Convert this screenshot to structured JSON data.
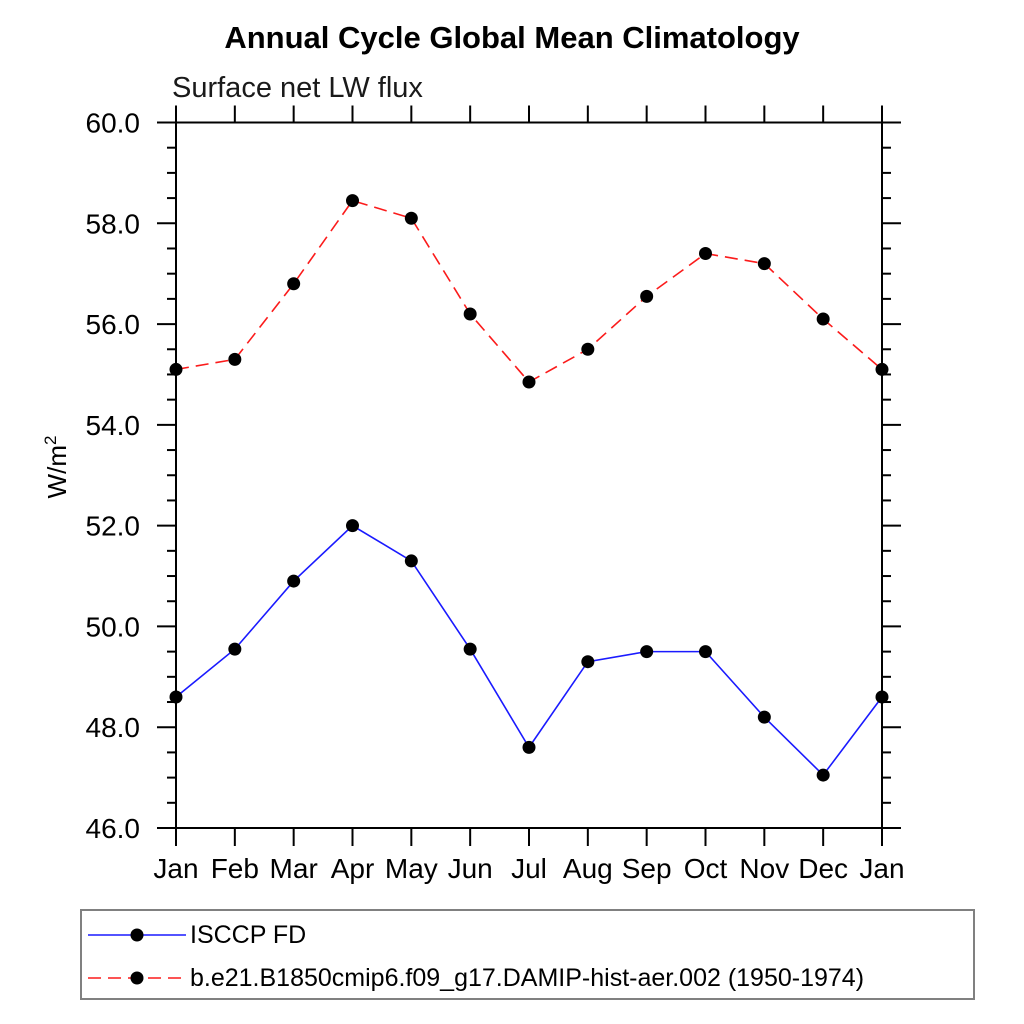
{
  "page": {
    "background": "#ffffff"
  },
  "chart_data": {
    "type": "line",
    "title": "Annual Cycle Global Mean Climatology",
    "subtitle": "Surface net LW flux",
    "ylabel_base": "W/m",
    "ylabel_exponent": "2",
    "xlabel": "",
    "categories": [
      "Jan",
      "Feb",
      "Mar",
      "Apr",
      "May",
      "Jun",
      "Jul",
      "Aug",
      "Sep",
      "Oct",
      "Nov",
      "Dec",
      "Jan"
    ],
    "ylim": [
      46.0,
      60.0
    ],
    "ytick_major_step": 2.0,
    "ytick_minor_step": 0.5,
    "ytick_label_decimals": 1,
    "grid": false,
    "frame": "box-with-outward-ticks",
    "axis_color": "#000000",
    "marker": {
      "shape": "circle",
      "color": "#000000"
    },
    "legend_position": "bottom-left-outside",
    "legend_border_color": "#808080",
    "series": [
      {
        "name": "ISCCP FD",
        "color": "#1a1aff",
        "line_style": "solid",
        "values": [
          48.6,
          49.55,
          50.9,
          52.0,
          51.3,
          49.55,
          47.6,
          49.3,
          49.5,
          49.5,
          48.2,
          47.05,
          48.6
        ]
      },
      {
        "name": "b.e21.B1850cmip6.f09_g17.DAMIP-hist-aer.002 (1950-1974)",
        "color": "#fb1b1b",
        "line_style": "dashed",
        "values": [
          55.1,
          55.3,
          56.8,
          58.45,
          58.1,
          56.2,
          54.85,
          55.5,
          56.55,
          57.4,
          57.2,
          56.1,
          55.1
        ]
      }
    ]
  }
}
